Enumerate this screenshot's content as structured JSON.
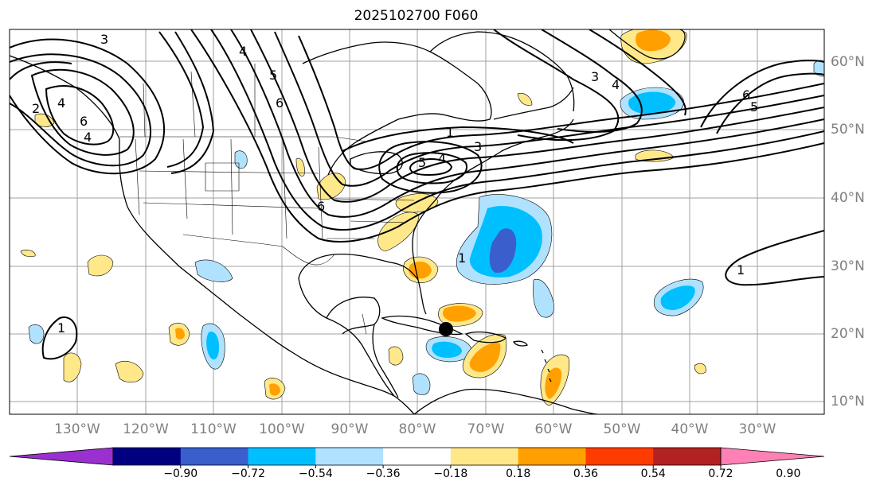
{
  "title": "2025102700 F060",
  "lat_labels": [
    "60°N",
    "50°N",
    "40°N",
    "30°N",
    "20°N",
    "10°N"
  ],
  "lon_labels": [
    "130°W",
    "120°W",
    "110°W",
    "100°W",
    "90°W",
    "80°W",
    "70°W",
    "60°W",
    "50°W",
    "40°W",
    "30°W"
  ],
  "colorbar": {
    "tick_labels": [
      "−0.90",
      "−0.72",
      "−0.54",
      "−0.36",
      "−0.18",
      "0.18",
      "0.36",
      "0.54",
      "0.72",
      "0.90"
    ],
    "colors": [
      "#9b30d0",
      "#000080",
      "#3a5fcd",
      "#00bfff",
      "#b0e2ff",
      "#ffffff",
      "#ffe88a",
      "#ffa000",
      "#ff3c00",
      "#b22222",
      "#ff80b4"
    ]
  },
  "contour_labels": [
    "1",
    "2",
    "3",
    "4",
    "5",
    "6"
  ],
  "marker": "storm-position-dot"
}
